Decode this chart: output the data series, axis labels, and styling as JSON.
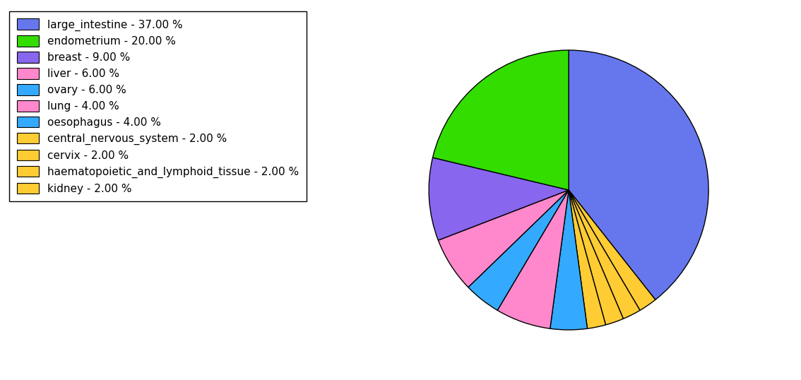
{
  "labels": [
    "large_intestine - 37.00 %",
    "endometrium - 20.00 %",
    "breast - 9.00 %",
    "liver - 6.00 %",
    "ovary - 6.00 %",
    "lung - 4.00 %",
    "oesophagus - 4.00 %",
    "central_nervous_system - 2.00 %",
    "cervix - 2.00 %",
    "haematopoietic_and_lymphoid_tissue - 2.00 %",
    "kidney - 2.00 %"
  ],
  "pie_order_values": [
    37,
    2,
    2,
    2,
    2,
    4,
    6,
    4,
    6,
    9,
    20
  ],
  "pie_order_colors": [
    "#6677ee",
    "#ffcc33",
    "#ffcc33",
    "#ffcc33",
    "#ffcc33",
    "#33aaff",
    "#ff88cc",
    "#33aaff",
    "#ff88cc",
    "#8866ee",
    "#33dd00"
  ],
  "legend_colors": [
    "#6677ee",
    "#33dd00",
    "#8866ee",
    "#ff88cc",
    "#33aaff",
    "#ff88cc",
    "#33aaff",
    "#ffcc33",
    "#ffcc33",
    "#ffcc33",
    "#ffcc33"
  ],
  "legend_labels": [
    "large_intestine - 37.00 %",
    "endometrium - 20.00 %",
    "breast - 9.00 %",
    "liver - 6.00 %",
    "ovary - 6.00 %",
    "lung - 4.00 %",
    "oesophagus - 4.00 %",
    "central_nervous_system - 2.00 %",
    "cervix - 2.00 %",
    "haematopoietic_and_lymphoid_tissue - 2.00 %",
    "kidney - 2.00 %"
  ],
  "startangle": 90,
  "figsize": [
    11.34,
    5.38
  ],
  "dpi": 100
}
